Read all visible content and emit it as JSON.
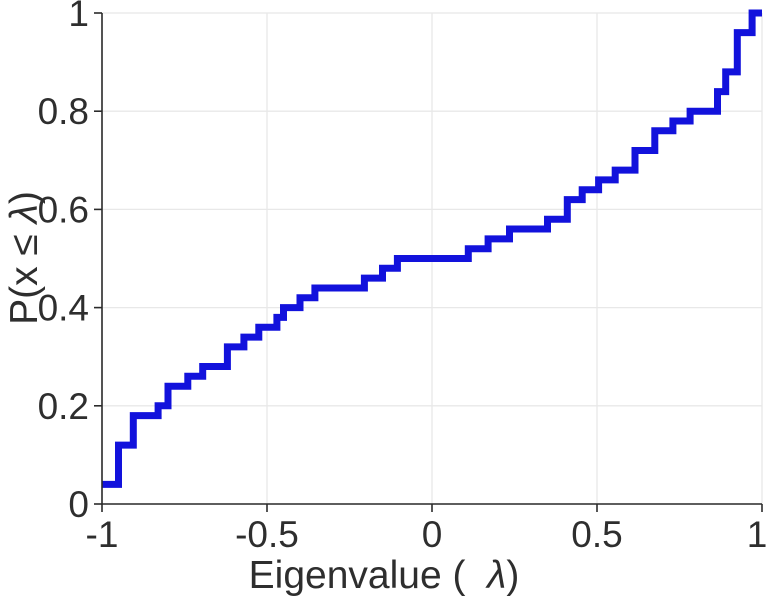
{
  "figure": {
    "background": "#ffffff",
    "axis_color": "#2b2b2b",
    "text_color": "#2e2e2e",
    "grid_color": "#e8e8e8",
    "tick_font_size": 37,
    "label_font_size": 39
  },
  "labels": {
    "xlabel_prefix": "Eigenvalue (  ",
    "xlabel_lambda": "λ",
    "xlabel_suffix": ")",
    "ylabel_prefix": "P(x ",
    "ylabel_leq": "≤",
    "ylabel_space": " ",
    "ylabel_lambda": "λ",
    "ylabel_suffix": ")"
  },
  "chart_data": {
    "type": "line",
    "subtype": "empirical-cdf-staircase",
    "title": "",
    "xlabel": "Eigenvalue (  λ)",
    "ylabel": "P(x ≤ λ)",
    "xlim": [
      -1,
      1
    ],
    "ylim": [
      0,
      1
    ],
    "xticks": [
      -1,
      -0.5,
      0,
      0.5,
      1
    ],
    "xtick_labels": [
      "-1",
      "-0.5",
      "0",
      "0.5",
      "1"
    ],
    "yticks": [
      0,
      0.2,
      0.4,
      0.6,
      0.8,
      1
    ],
    "ytick_labels": [
      "0",
      "0.2",
      "0.4",
      "0.6",
      "0.8",
      "1"
    ],
    "grid": true,
    "legend": false,
    "line": {
      "color": "#1212dc",
      "width": 7
    },
    "treads": [
      {
        "level": 0.04,
        "from": -1.0,
        "to": -0.95
      },
      {
        "level": 0.12,
        "from": -0.95,
        "to": -0.905
      },
      {
        "level": 0.18,
        "from": -0.905,
        "to": -0.83
      },
      {
        "level": 0.2,
        "from": -0.83,
        "to": -0.8
      },
      {
        "level": 0.24,
        "from": -0.8,
        "to": -0.74
      },
      {
        "level": 0.26,
        "from": -0.74,
        "to": -0.695
      },
      {
        "level": 0.28,
        "from": -0.695,
        "to": -0.62
      },
      {
        "level": 0.32,
        "from": -0.62,
        "to": -0.57
      },
      {
        "level": 0.34,
        "from": -0.57,
        "to": -0.525
      },
      {
        "level": 0.36,
        "from": -0.525,
        "to": -0.47
      },
      {
        "level": 0.38,
        "from": -0.47,
        "to": -0.45
      },
      {
        "level": 0.4,
        "from": -0.45,
        "to": -0.4
      },
      {
        "level": 0.42,
        "from": -0.4,
        "to": -0.355
      },
      {
        "level": 0.44,
        "from": -0.355,
        "to": -0.205
      },
      {
        "level": 0.46,
        "from": -0.205,
        "to": -0.15
      },
      {
        "level": 0.48,
        "from": -0.15,
        "to": -0.105
      },
      {
        "level": 0.5,
        "from": -0.105,
        "to": 0.11
      },
      {
        "level": 0.52,
        "from": 0.11,
        "to": 0.17
      },
      {
        "level": 0.54,
        "from": 0.17,
        "to": 0.235
      },
      {
        "level": 0.56,
        "from": 0.235,
        "to": 0.35
      },
      {
        "level": 0.58,
        "from": 0.35,
        "to": 0.41
      },
      {
        "level": 0.62,
        "from": 0.41,
        "to": 0.455
      },
      {
        "level": 0.64,
        "from": 0.455,
        "to": 0.505
      },
      {
        "level": 0.66,
        "from": 0.505,
        "to": 0.555
      },
      {
        "level": 0.68,
        "from": 0.555,
        "to": 0.615
      },
      {
        "level": 0.72,
        "from": 0.615,
        "to": 0.675
      },
      {
        "level": 0.76,
        "from": 0.675,
        "to": 0.73
      },
      {
        "level": 0.78,
        "from": 0.73,
        "to": 0.782
      },
      {
        "level": 0.8,
        "from": 0.782,
        "to": 0.865
      },
      {
        "level": 0.84,
        "from": 0.865,
        "to": 0.89
      },
      {
        "level": 0.88,
        "from": 0.89,
        "to": 0.925
      },
      {
        "level": 0.96,
        "from": 0.925,
        "to": 0.97
      },
      {
        "level": 1.0,
        "from": 0.97,
        "to": 1.0
      }
    ]
  }
}
